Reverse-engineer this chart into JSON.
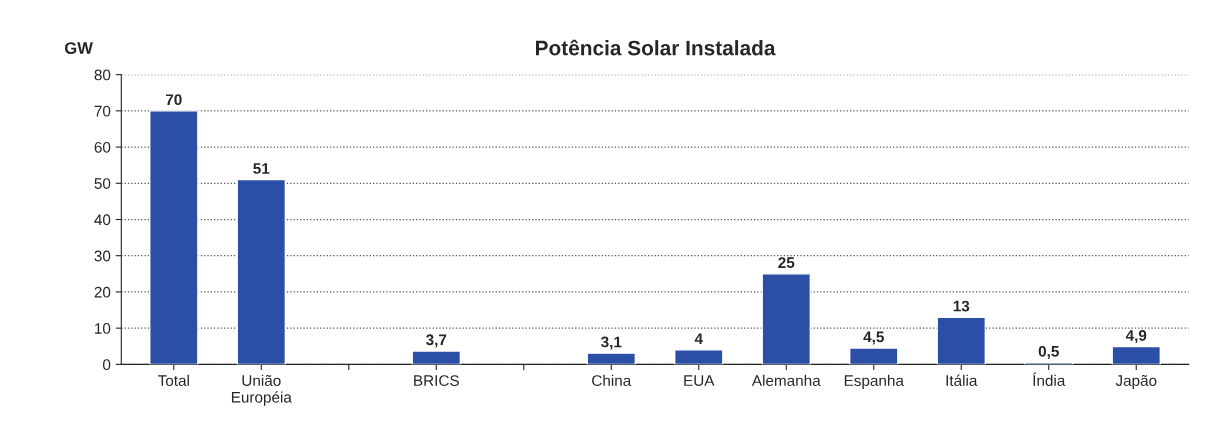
{
  "chart_data": {
    "type": "bar",
    "title": "Potência Solar Instalada",
    "ylabel": "GW",
    "categories": [
      "Total",
      "União\nEuropéia",
      null,
      "BRICS",
      null,
      "China",
      "EUA",
      "Alemanha",
      "Espanha",
      "Itália",
      "Índia",
      "Japão"
    ],
    "values": [
      70,
      51,
      null,
      3.7,
      null,
      3.1,
      4,
      25,
      4.5,
      13,
      0.5,
      4.9
    ],
    "value_labels": [
      "70",
      "51",
      null,
      "3,7",
      null,
      "3,1",
      "4",
      "25",
      "4,5",
      "13",
      "0,5",
      "4,9"
    ],
    "color": "#2b4ea6",
    "ylim": [
      0,
      80
    ],
    "yticks": [
      0,
      10,
      20,
      30,
      40,
      50,
      60,
      70,
      80
    ],
    "grid": "y"
  }
}
